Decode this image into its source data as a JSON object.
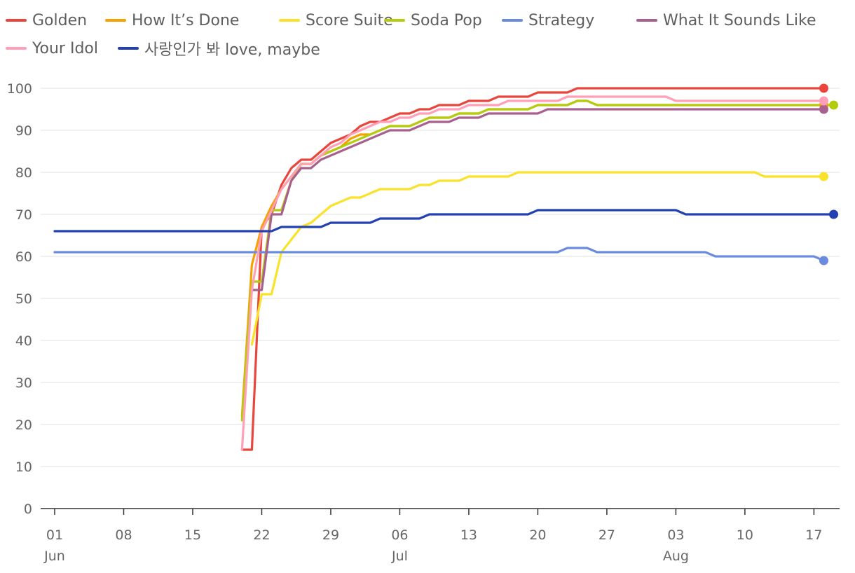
{
  "chart_data": {
    "type": "line",
    "title": "",
    "xlabel": "",
    "ylabel": "",
    "ylim": [
      0,
      100
    ],
    "y_ticks": [
      "0",
      "10",
      "20",
      "30",
      "40",
      "50",
      "60",
      "70",
      "80",
      "90",
      "100"
    ],
    "x_ticks": [
      {
        "day": 0,
        "label": "01",
        "sub": "Jun"
      },
      {
        "day": 7,
        "label": "08",
        "sub": ""
      },
      {
        "day": 14,
        "label": "15",
        "sub": ""
      },
      {
        "day": 21,
        "label": "22",
        "sub": ""
      },
      {
        "day": 28,
        "label": "29",
        "sub": ""
      },
      {
        "day": 35,
        "label": "06",
        "sub": "Jul"
      },
      {
        "day": 42,
        "label": "13",
        "sub": ""
      },
      {
        "day": 49,
        "label": "20",
        "sub": ""
      },
      {
        "day": 56,
        "label": "27",
        "sub": ""
      },
      {
        "day": 63,
        "label": "03",
        "sub": "Aug"
      },
      {
        "day": 70,
        "label": "10",
        "sub": ""
      },
      {
        "day": 77,
        "label": "17",
        "sub": ""
      }
    ],
    "grid": true,
    "legend_position": "top",
    "series": [
      {
        "name": "Golden",
        "color": "#e8453c",
        "points": [
          [
            19,
            14
          ],
          [
            20,
            14
          ],
          [
            21,
            67
          ],
          [
            22,
            70
          ],
          [
            23,
            77
          ],
          [
            24,
            81
          ],
          [
            25,
            83
          ],
          [
            26,
            83
          ],
          [
            27,
            85
          ],
          [
            28,
            87
          ],
          [
            29,
            88
          ],
          [
            30,
            89
          ],
          [
            31,
            91
          ],
          [
            32,
            92
          ],
          [
            33,
            92
          ],
          [
            34,
            93
          ],
          [
            35,
            94
          ],
          [
            36,
            94
          ],
          [
            37,
            95
          ],
          [
            38,
            95
          ],
          [
            39,
            96
          ],
          [
            40,
            96
          ],
          [
            41,
            96
          ],
          [
            42,
            97
          ],
          [
            43,
            97
          ],
          [
            44,
            97
          ],
          [
            45,
            98
          ],
          [
            46,
            98
          ],
          [
            47,
            98
          ],
          [
            48,
            98
          ],
          [
            49,
            99
          ],
          [
            50,
            99
          ],
          [
            51,
            99
          ],
          [
            52,
            99
          ],
          [
            53,
            100
          ],
          [
            78,
            100
          ]
        ]
      },
      {
        "name": "How It’s Done",
        "color": "#f5a100",
        "points": [
          [
            19,
            22
          ],
          [
            20,
            58
          ],
          [
            21,
            67
          ],
          [
            22,
            72
          ],
          [
            23,
            76
          ],
          [
            24,
            79
          ],
          [
            25,
            82
          ],
          [
            26,
            82
          ],
          [
            27,
            84
          ],
          [
            28,
            85
          ],
          [
            29,
            86
          ],
          [
            30,
            88
          ],
          [
            31,
            89
          ],
          [
            32,
            89
          ],
          [
            33,
            90
          ],
          [
            34,
            91
          ],
          [
            35,
            91
          ],
          [
            36,
            91
          ],
          [
            37,
            92
          ],
          [
            38,
            93
          ],
          [
            39,
            93
          ],
          [
            40,
            93
          ],
          [
            41,
            94
          ],
          [
            42,
            94
          ],
          [
            43,
            94
          ],
          [
            44,
            95
          ],
          [
            45,
            95
          ],
          [
            46,
            95
          ],
          [
            47,
            95
          ],
          [
            48,
            95
          ],
          [
            49,
            96
          ],
          [
            50,
            96
          ],
          [
            51,
            96
          ],
          [
            52,
            96
          ],
          [
            53,
            97
          ],
          [
            54,
            97
          ],
          [
            55,
            96
          ],
          [
            78,
            96
          ]
        ]
      },
      {
        "name": "Score Suite",
        "color": "#fae12a",
        "points": [
          [
            20,
            39
          ],
          [
            21,
            51
          ],
          [
            22,
            51
          ],
          [
            23,
            61
          ],
          [
            24,
            64
          ],
          [
            25,
            67
          ],
          [
            26,
            68
          ],
          [
            27,
            70
          ],
          [
            28,
            72
          ],
          [
            29,
            73
          ],
          [
            30,
            74
          ],
          [
            31,
            74
          ],
          [
            32,
            75
          ],
          [
            33,
            76
          ],
          [
            34,
            76
          ],
          [
            35,
            76
          ],
          [
            36,
            76
          ],
          [
            37,
            77
          ],
          [
            38,
            77
          ],
          [
            39,
            78
          ],
          [
            40,
            78
          ],
          [
            41,
            78
          ],
          [
            42,
            79
          ],
          [
            43,
            79
          ],
          [
            44,
            79
          ],
          [
            45,
            79
          ],
          [
            46,
            79
          ],
          [
            47,
            80
          ],
          [
            71,
            80
          ],
          [
            72,
            79
          ],
          [
            78,
            79
          ]
        ]
      },
      {
        "name": "Soda Pop",
        "color": "#b4cc10",
        "points": [
          [
            19,
            21
          ],
          [
            20,
            54
          ],
          [
            21,
            54
          ],
          [
            22,
            71
          ],
          [
            23,
            71
          ],
          [
            24,
            78
          ],
          [
            25,
            82
          ],
          [
            26,
            82
          ],
          [
            27,
            84
          ],
          [
            28,
            85
          ],
          [
            29,
            86
          ],
          [
            30,
            87
          ],
          [
            31,
            88
          ],
          [
            32,
            89
          ],
          [
            33,
            90
          ],
          [
            34,
            91
          ],
          [
            35,
            91
          ],
          [
            36,
            91
          ],
          [
            37,
            92
          ],
          [
            38,
            93
          ],
          [
            39,
            93
          ],
          [
            40,
            93
          ],
          [
            41,
            94
          ],
          [
            42,
            94
          ],
          [
            43,
            94
          ],
          [
            44,
            95
          ],
          [
            45,
            95
          ],
          [
            46,
            95
          ],
          [
            47,
            95
          ],
          [
            48,
            95
          ],
          [
            49,
            96
          ],
          [
            50,
            96
          ],
          [
            51,
            96
          ],
          [
            52,
            96
          ],
          [
            53,
            97
          ],
          [
            54,
            97
          ],
          [
            55,
            96
          ],
          [
            79,
            96
          ]
        ]
      },
      {
        "name": "Strategy",
        "color": "#6b8cde",
        "points": [
          [
            0,
            61
          ],
          [
            51,
            61
          ],
          [
            52,
            62
          ],
          [
            54,
            62
          ],
          [
            55,
            61
          ],
          [
            66,
            61
          ],
          [
            67,
            60
          ],
          [
            77,
            60
          ],
          [
            78,
            59
          ]
        ]
      },
      {
        "name": "What It Sounds Like",
        "color": "#a8618f",
        "points": [
          [
            20,
            52
          ],
          [
            21,
            52
          ],
          [
            22,
            70
          ],
          [
            23,
            70
          ],
          [
            24,
            78
          ],
          [
            25,
            81
          ],
          [
            26,
            81
          ],
          [
            27,
            83
          ],
          [
            28,
            84
          ],
          [
            29,
            85
          ],
          [
            30,
            86
          ],
          [
            31,
            87
          ],
          [
            32,
            88
          ],
          [
            33,
            89
          ],
          [
            34,
            90
          ],
          [
            35,
            90
          ],
          [
            36,
            90
          ],
          [
            37,
            91
          ],
          [
            38,
            92
          ],
          [
            39,
            92
          ],
          [
            40,
            92
          ],
          [
            41,
            93
          ],
          [
            42,
            93
          ],
          [
            43,
            93
          ],
          [
            44,
            94
          ],
          [
            45,
            94
          ],
          [
            46,
            94
          ],
          [
            47,
            94
          ],
          [
            48,
            94
          ],
          [
            49,
            94
          ],
          [
            50,
            95
          ],
          [
            78,
            95
          ]
        ]
      },
      {
        "name": "Your Idol",
        "color": "#ff9fb8",
        "points": [
          [
            19,
            14
          ],
          [
            20,
            52
          ],
          [
            21,
            66
          ],
          [
            22,
            71
          ],
          [
            23,
            76
          ],
          [
            24,
            79
          ],
          [
            25,
            82
          ],
          [
            26,
            82
          ],
          [
            27,
            84
          ],
          [
            28,
            86
          ],
          [
            29,
            87
          ],
          [
            30,
            89
          ],
          [
            31,
            90
          ],
          [
            32,
            91
          ],
          [
            33,
            92
          ],
          [
            34,
            92
          ],
          [
            35,
            93
          ],
          [
            36,
            93
          ],
          [
            37,
            94
          ],
          [
            38,
            94
          ],
          [
            39,
            95
          ],
          [
            40,
            95
          ],
          [
            41,
            95
          ],
          [
            42,
            96
          ],
          [
            43,
            96
          ],
          [
            44,
            96
          ],
          [
            45,
            96
          ],
          [
            46,
            97
          ],
          [
            47,
            97
          ],
          [
            48,
            97
          ],
          [
            49,
            97
          ],
          [
            50,
            97
          ],
          [
            51,
            97
          ],
          [
            52,
            98
          ],
          [
            53,
            98
          ],
          [
            62,
            98
          ],
          [
            63,
            97
          ],
          [
            78,
            97
          ]
        ]
      },
      {
        "name": "사랑인가 봐 love, maybe",
        "color": "#2341b0",
        "points": [
          [
            0,
            66
          ],
          [
            22,
            66
          ],
          [
            23,
            67
          ],
          [
            27,
            67
          ],
          [
            28,
            68
          ],
          [
            32,
            68
          ],
          [
            33,
            69
          ],
          [
            37,
            69
          ],
          [
            38,
            70
          ],
          [
            48,
            70
          ],
          [
            49,
            71
          ],
          [
            63,
            71
          ],
          [
            64,
            70
          ],
          [
            79,
            70
          ]
        ]
      }
    ]
  }
}
